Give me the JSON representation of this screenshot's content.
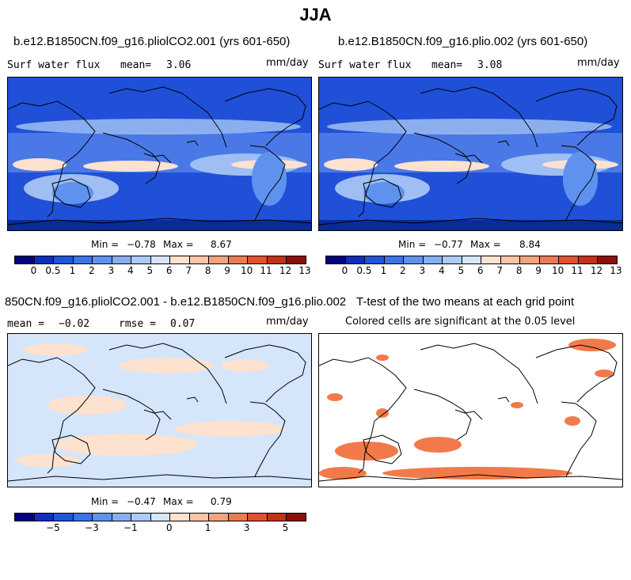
{
  "figure_title": "JJA",
  "panels": {
    "p1": {
      "title": "b.e12.B1850CN.f09_g16.pliolCO2.001 (yrs 601-650)",
      "var_label": "Surf water flux",
      "mean_label": "mean=",
      "mean_value": "3.06",
      "units": "mm/day",
      "min_label": "Min =",
      "min_value": "−0.78",
      "max_label": "Max =",
      "max_value": "8.67"
    },
    "p2": {
      "title": "b.e12.B1850CN.f09_g16.plio.002 (yrs 601-650)",
      "var_label": "Surf water flux",
      "mean_label": "mean=",
      "mean_value": "3.08",
      "units": "mm/day",
      "min_label": "Min =",
      "min_value": "−0.77",
      "max_label": "Max =",
      "max_value": "8.84"
    },
    "p3": {
      "title": "850CN.f09_g16.pliolCO2.001 - b.e12.B1850CN.f09_g16.plio.002",
      "mean_label": "mean =",
      "mean_value": "−0.02",
      "rmse_label": "rmse =",
      "rmse_value": "0.07",
      "units": "mm/day",
      "min_label": "Min =",
      "min_value": "−0.47",
      "max_label": "Max =",
      "max_value": "0.79"
    },
    "p4": {
      "title": "T-test of the two means at each grid point",
      "subtitle": "Colored cells are significant at the 0.05 level"
    }
  },
  "colorbar_abs": {
    "colors": [
      "#04047c",
      "#0d2fbf",
      "#1f55dc",
      "#3a74e6",
      "#5f92ee",
      "#86aef3",
      "#aecaf8",
      "#d5e6fb",
      "#fde2cf",
      "#f8c5a6",
      "#f3a27e",
      "#ec7b53",
      "#e2512d",
      "#c4311b",
      "#8c1008"
    ],
    "ticks": [
      "0",
      "0.5",
      "1",
      "2",
      "3",
      "4",
      "5",
      "6",
      "7",
      "8",
      "9",
      "10",
      "11",
      "12",
      "13"
    ]
  },
  "colorbar_diff": {
    "colors": [
      "#04047c",
      "#0d2fbf",
      "#1f55dc",
      "#3a74e6",
      "#5f92ee",
      "#86aef3",
      "#aecaf8",
      "#d5e6fb",
      "#fde2cf",
      "#f8c5a6",
      "#f3a27e",
      "#ec7b53",
      "#e2512d",
      "#c4311b",
      "#8c1008"
    ],
    "ticks": [
      "−5",
      "−3",
      "−1",
      "0",
      "1",
      "3",
      "5"
    ]
  },
  "map_colors": {
    "ocean_deep": "#2050d8",
    "ocean_mid": "#4a78e6",
    "band_light": "#9fbef3",
    "band_pale": "#c8dcf8",
    "dry_peach": "#fde2cf",
    "land_mid": "#5f92ee",
    "diff_base": "#d5e6fb",
    "diff_pos": "#fde2cf",
    "ttest_sig": "#f27a4a",
    "coast": "#000000"
  }
}
